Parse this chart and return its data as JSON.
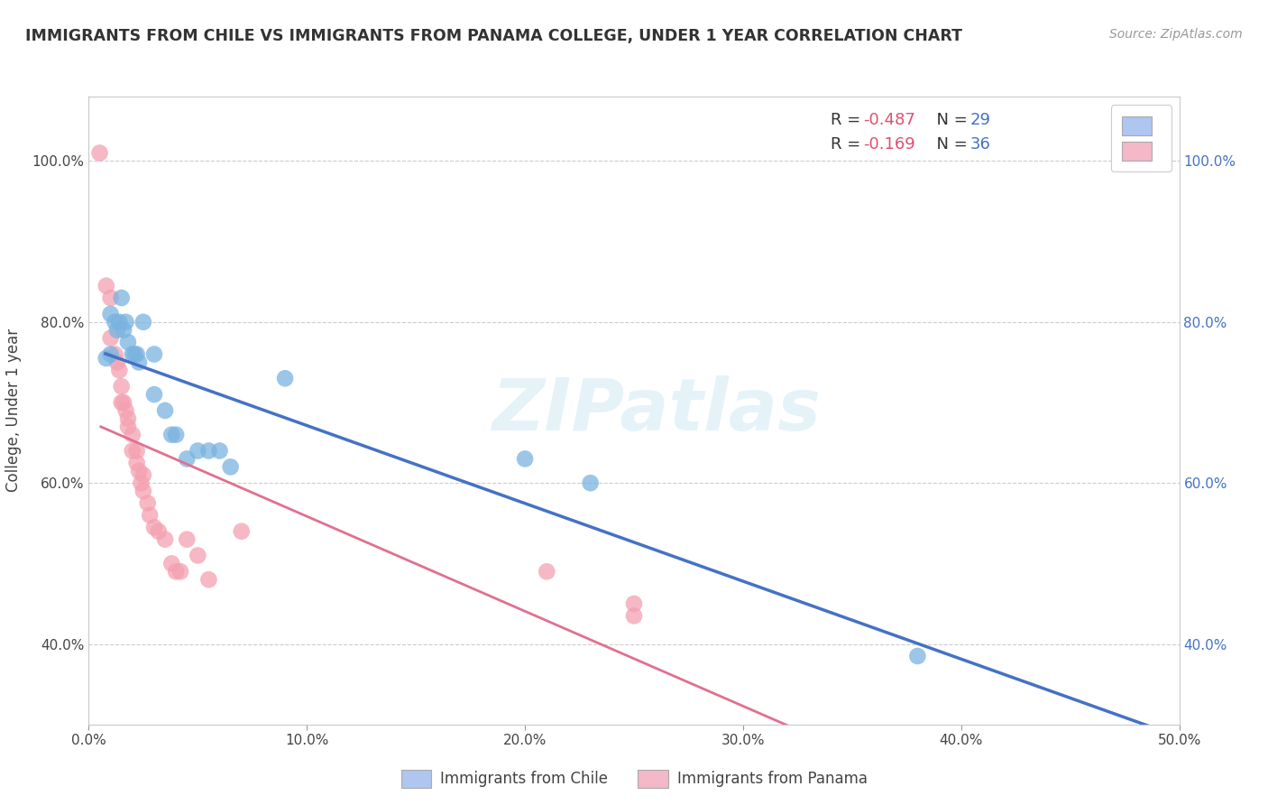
{
  "title": "IMMIGRANTS FROM CHILE VS IMMIGRANTS FROM PANAMA COLLEGE, UNDER 1 YEAR CORRELATION CHART",
  "source": "Source: ZipAtlas.com",
  "xlabel": "",
  "ylabel": "College, Under 1 year",
  "xlim": [
    0.0,
    0.5
  ],
  "ylim": [
    0.3,
    1.08
  ],
  "xtick_labels": [
    "0.0%",
    "10.0%",
    "20.0%",
    "30.0%",
    "40.0%",
    "50.0%"
  ],
  "xtick_vals": [
    0.0,
    0.1,
    0.2,
    0.3,
    0.4,
    0.5
  ],
  "ytick_labels": [
    "40.0%",
    "60.0%",
    "80.0%",
    "100.0%"
  ],
  "ytick_vals": [
    0.4,
    0.6,
    0.8,
    1.0
  ],
  "watermark": "ZIPatlas",
  "chile_color": "#7ab3e0",
  "panama_color": "#f4a0b0",
  "chile_line_color": "#4472c4",
  "panama_line_color": "#e07090",
  "chile_scatter": [
    [
      0.008,
      0.755
    ],
    [
      0.01,
      0.76
    ],
    [
      0.01,
      0.81
    ],
    [
      0.012,
      0.8
    ],
    [
      0.013,
      0.79
    ],
    [
      0.014,
      0.8
    ],
    [
      0.015,
      0.83
    ],
    [
      0.016,
      0.79
    ],
    [
      0.017,
      0.8
    ],
    [
      0.018,
      0.775
    ],
    [
      0.02,
      0.76
    ],
    [
      0.021,
      0.76
    ],
    [
      0.022,
      0.76
    ],
    [
      0.023,
      0.75
    ],
    [
      0.025,
      0.8
    ],
    [
      0.03,
      0.76
    ],
    [
      0.03,
      0.71
    ],
    [
      0.035,
      0.69
    ],
    [
      0.038,
      0.66
    ],
    [
      0.04,
      0.66
    ],
    [
      0.045,
      0.63
    ],
    [
      0.05,
      0.64
    ],
    [
      0.055,
      0.64
    ],
    [
      0.06,
      0.64
    ],
    [
      0.065,
      0.62
    ],
    [
      0.09,
      0.73
    ],
    [
      0.2,
      0.63
    ],
    [
      0.23,
      0.6
    ],
    [
      0.38,
      0.385
    ]
  ],
  "panama_scatter": [
    [
      0.005,
      1.01
    ],
    [
      0.008,
      0.845
    ],
    [
      0.01,
      0.83
    ],
    [
      0.01,
      0.78
    ],
    [
      0.012,
      0.76
    ],
    [
      0.013,
      0.75
    ],
    [
      0.014,
      0.74
    ],
    [
      0.015,
      0.72
    ],
    [
      0.015,
      0.7
    ],
    [
      0.016,
      0.7
    ],
    [
      0.017,
      0.69
    ],
    [
      0.018,
      0.68
    ],
    [
      0.018,
      0.67
    ],
    [
      0.02,
      0.66
    ],
    [
      0.02,
      0.64
    ],
    [
      0.022,
      0.64
    ],
    [
      0.022,
      0.625
    ],
    [
      0.023,
      0.615
    ],
    [
      0.024,
      0.6
    ],
    [
      0.025,
      0.61
    ],
    [
      0.025,
      0.59
    ],
    [
      0.027,
      0.575
    ],
    [
      0.028,
      0.56
    ],
    [
      0.03,
      0.545
    ],
    [
      0.032,
      0.54
    ],
    [
      0.035,
      0.53
    ],
    [
      0.038,
      0.5
    ],
    [
      0.04,
      0.49
    ],
    [
      0.042,
      0.49
    ],
    [
      0.045,
      0.53
    ],
    [
      0.05,
      0.51
    ],
    [
      0.055,
      0.48
    ],
    [
      0.07,
      0.54
    ],
    [
      0.21,
      0.49
    ],
    [
      0.25,
      0.45
    ],
    [
      0.25,
      0.435
    ]
  ],
  "background_color": "#ffffff",
  "grid_color": "#cccccc",
  "title_color": "#333333",
  "axis_color": "#444444",
  "legend_R_color": "#e05070",
  "legend_N_color": "#4472c4",
  "chile_legend_color": "#aec6f0",
  "panama_legend_color": "#f4b8c8"
}
